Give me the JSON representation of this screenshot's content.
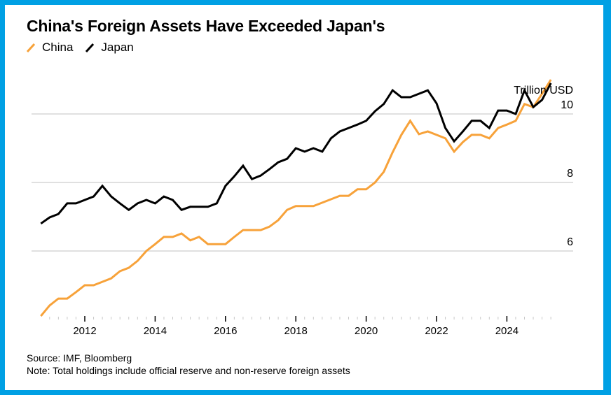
{
  "frame_color": "#00A0E4",
  "title": "China's Foreign Assets Have Exceeded Japan's",
  "footer": {
    "source": "Source: IMF, Bloomberg",
    "note": "Note: Total holdings include official reserve and non-reserve foreign assets"
  },
  "chart_data": {
    "type": "line",
    "title": "China's Foreign Assets Have Exceeded Japan's",
    "xlabel": "",
    "ylabel": "Trillion USD",
    "y_unit_label": "Trillion USD",
    "ylim": [
      3.85,
      11.3
    ],
    "xlim": [
      2010.7,
      2025.8
    ],
    "yticks": [
      6,
      8,
      10
    ],
    "ytick_labels": [
      "6",
      "8",
      "10"
    ],
    "xticks": [
      2012,
      2014,
      2016,
      2018,
      2020,
      2022,
      2024
    ],
    "xtick_labels": [
      "2012",
      "2014",
      "2016",
      "2018",
      "2020",
      "2022",
      "2024"
    ],
    "minor_xtick_step": 0.25,
    "minor_xtick_range": [
      2011.0,
      2025.25
    ],
    "grid": "horizontal",
    "legend_position": "top-left",
    "x_start": 2010.75,
    "x_step": 0.25,
    "series": [
      {
        "name": "China",
        "color": "#F7A23A",
        "values": [
          4.1,
          4.41,
          4.61,
          4.61,
          4.8,
          5.0,
          5.0,
          5.1,
          5.2,
          5.41,
          5.51,
          5.71,
          6.0,
          6.2,
          6.41,
          6.41,
          6.51,
          6.31,
          6.41,
          6.2,
          6.2,
          6.2,
          6.41,
          6.61,
          6.61,
          6.61,
          6.71,
          6.9,
          7.2,
          7.31,
          7.31,
          7.31,
          7.41,
          7.51,
          7.61,
          7.61,
          7.8,
          7.8,
          8.0,
          8.31,
          8.88,
          9.39,
          9.8,
          9.41,
          9.49,
          9.39,
          9.29,
          8.9,
          9.18,
          9.39,
          9.39,
          9.29,
          9.59,
          9.69,
          9.8,
          10.29,
          10.2,
          10.59,
          11.0
        ]
      },
      {
        "name": "Japan",
        "color": "#000000",
        "values": [
          6.8,
          6.98,
          7.08,
          7.39,
          7.39,
          7.49,
          7.59,
          7.9,
          7.59,
          7.39,
          7.2,
          7.39,
          7.49,
          7.39,
          7.59,
          7.49,
          7.2,
          7.29,
          7.29,
          7.29,
          7.39,
          7.9,
          8.18,
          8.49,
          8.1,
          8.2,
          8.39,
          8.59,
          8.69,
          9.0,
          8.9,
          9.0,
          8.9,
          9.29,
          9.49,
          9.59,
          9.69,
          9.8,
          10.08,
          10.29,
          10.69,
          10.49,
          10.49,
          10.59,
          10.69,
          10.31,
          9.59,
          9.2,
          9.49,
          9.8,
          9.8,
          9.59,
          10.1,
          10.1,
          10.0,
          10.69,
          10.2,
          10.41,
          10.9
        ]
      }
    ]
  }
}
